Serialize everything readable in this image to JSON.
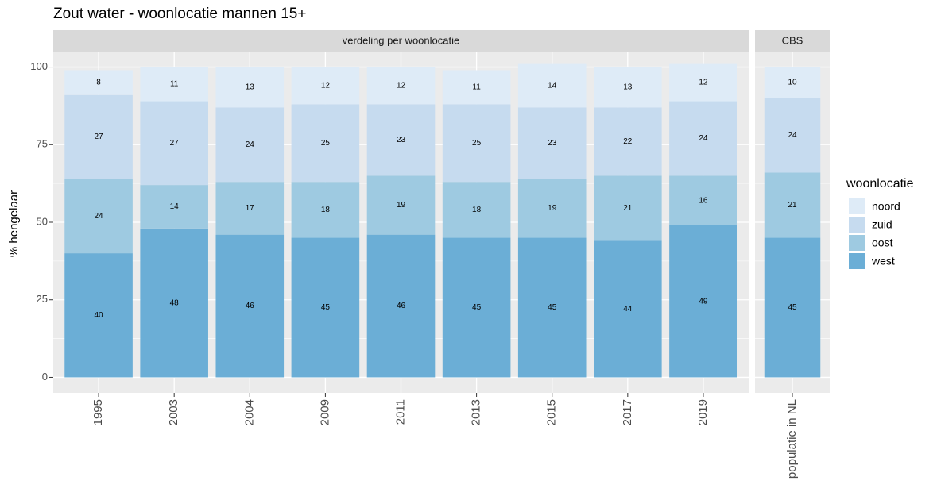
{
  "title": "Zout water - woonlocatie mannen 15+",
  "chart_data": {
    "type": "bar",
    "stacked": true,
    "y_label": "% hengelaar",
    "legend_title": "woonlocatie",
    "panels": [
      {
        "strip": "verdeling per woonlocatie",
        "categories": [
          "1995",
          "2003",
          "2004",
          "2009",
          "2011",
          "2013",
          "2015",
          "2017",
          "2019"
        ]
      },
      {
        "strip": "CBS",
        "categories": [
          "populatie in NL"
        ]
      }
    ],
    "series": [
      {
        "name": "west",
        "color": "#6baed6",
        "values": [
          40,
          48,
          46,
          45,
          46,
          45,
          45,
          44,
          49,
          45
        ]
      },
      {
        "name": "oost",
        "color": "#9ecae1",
        "values": [
          24,
          14,
          17,
          18,
          19,
          18,
          19,
          21,
          16,
          21
        ]
      },
      {
        "name": "zuid",
        "color": "#c6dbef",
        "values": [
          27,
          27,
          24,
          25,
          23,
          25,
          23,
          22,
          24,
          24
        ]
      },
      {
        "name": "noord",
        "color": "#deebf7",
        "values": [
          8,
          11,
          13,
          12,
          12,
          11,
          14,
          13,
          12,
          10
        ]
      }
    ],
    "ylim": [
      -5,
      105
    ],
    "yticks": [
      0,
      25,
      50,
      75,
      100
    ],
    "minor_yticks": [
      12.5,
      37.5,
      62.5,
      87.5
    ],
    "grid": true,
    "legend": "right"
  }
}
